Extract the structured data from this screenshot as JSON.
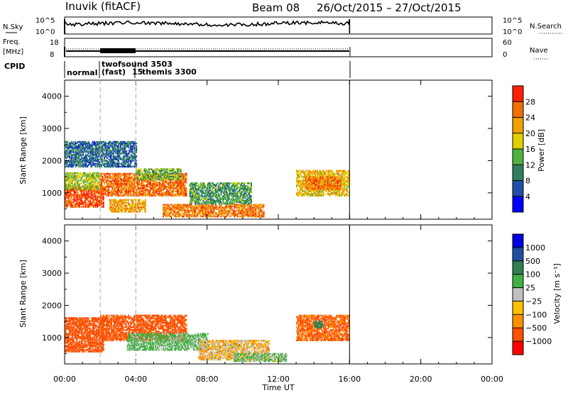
{
  "header": {
    "title": "Inuvik (fitACF)",
    "beam": "Beam 08",
    "date_range": "26/Oct/2015 – 27/Oct/2015"
  },
  "noise_panel": {
    "left_label": "N.Sky",
    "right_label": "N.Search",
    "left_ticks": [
      "10^5",
      "10^0"
    ],
    "right_ticks": [
      "10^5",
      "10^0"
    ]
  },
  "freq_panel": {
    "left_label": "Freq.",
    "left_unit": "[MHz]",
    "right_label": "Nave",
    "left_ticks": [
      "18",
      "8"
    ],
    "right_ticks": [
      "60",
      "0"
    ]
  },
  "cpid": {
    "label": "CPID",
    "programs": [
      {
        "name": "normal",
        "start_hour": 0
      },
      {
        "name": "twofsound 3503",
        "start_hour": 2
      },
      {
        "name": "(fast)",
        "start_hour": 2
      },
      {
        "name": "themis 3300",
        "start_hour": 4
      }
    ],
    "extra_mark": "15"
  },
  "colors": {
    "power_scale": [
      "#0000ff",
      "#1f4fa8",
      "#2f7f5f",
      "#50b040",
      "#e0d000",
      "#f0a000",
      "#f07000",
      "#ff2000"
    ],
    "velocity_scale": [
      "#ff0000",
      "#ff5000",
      "#ff9000",
      "#ffc000",
      "#c0c0c0",
      "#40b040",
      "#307f50",
      "#1f4fa0",
      "#0000e0"
    ]
  },
  "chart_data": [
    {
      "type": "heatmap",
      "title": "Power",
      "xlabel": "",
      "ylabel": "Slant Range [km]",
      "xlim": [
        0,
        24
      ],
      "ylim": [
        180,
        4500
      ],
      "x_ticks": [
        "00:00",
        "04:00",
        "08:00",
        "12:00",
        "16:00",
        "20:00",
        "00:00"
      ],
      "y_ticks": [
        1000,
        2000,
        3000,
        4000
      ],
      "colorbar_label": "Power [dB]",
      "colorbar_ticks": [
        4,
        8,
        12,
        16,
        20,
        24,
        28
      ],
      "colorbar_range": [
        0,
        32
      ],
      "data_end_hour": 16,
      "blobs": [
        {
          "t0": 0.0,
          "t1": 2.2,
          "r0": 550,
          "r1": 1200,
          "level": 28
        },
        {
          "t0": 0.0,
          "t1": 2.0,
          "r0": 1100,
          "r1": 1600,
          "level": 16
        },
        {
          "t0": 2.0,
          "t1": 6.8,
          "r0": 900,
          "r1": 1600,
          "level": 26
        },
        {
          "t0": 4.0,
          "t1": 6.5,
          "r0": 1400,
          "r1": 1750,
          "level": 14
        },
        {
          "t0": 2.5,
          "t1": 4.5,
          "r0": 400,
          "r1": 800,
          "level": 22
        },
        {
          "t0": 5.5,
          "t1": 11.2,
          "r0": 250,
          "r1": 650,
          "level": 25
        },
        {
          "t0": 7.0,
          "t1": 10.5,
          "r0": 650,
          "r1": 1300,
          "level": 12
        },
        {
          "t0": 13.0,
          "t1": 16.0,
          "r0": 900,
          "r1": 1700,
          "level": 20
        },
        {
          "t0": 13.5,
          "t1": 15.5,
          "r0": 1100,
          "r1": 1500,
          "level": 26
        },
        {
          "t0": 0.0,
          "t1": 4.0,
          "r0": 1800,
          "r1": 2600,
          "level": 8
        }
      ]
    },
    {
      "type": "heatmap",
      "title": "Velocity",
      "xlabel": "Time UT",
      "ylabel": "Slant Range [km]",
      "xlim": [
        0,
        24
      ],
      "ylim": [
        180,
        4500
      ],
      "x_ticks": [
        "00:00",
        "04:00",
        "08:00",
        "12:00",
        "16:00",
        "20:00",
        "00:00"
      ],
      "y_ticks": [
        1000,
        2000,
        3000,
        4000
      ],
      "colorbar_label": "Velocity [m s⁻¹]",
      "colorbar_ticks": [
        "1000",
        "500",
        "100",
        "25",
        "−25",
        "−100",
        "−500",
        "−1000"
      ],
      "data_end_hour": 16,
      "blobs": [
        {
          "t0": 0.0,
          "t1": 2.2,
          "r0": 550,
          "r1": 1600,
          "level": -300
        },
        {
          "t0": 2.0,
          "t1": 6.8,
          "r0": 900,
          "r1": 1700,
          "level": -200
        },
        {
          "t0": 3.5,
          "t1": 8.0,
          "r0": 600,
          "r1": 1100,
          "level": 150
        },
        {
          "t0": 7.5,
          "t1": 11.5,
          "r0": 300,
          "r1": 900,
          "level": 0
        },
        {
          "t0": 9.5,
          "t1": 12.5,
          "r0": 250,
          "r1": 500,
          "level": 120
        },
        {
          "t0": 13.0,
          "t1": 16.0,
          "r0": 900,
          "r1": 1700,
          "level": -150
        },
        {
          "t0": 14.0,
          "t1": 14.5,
          "r0": 1300,
          "r1": 1500,
          "level": 800
        }
      ]
    }
  ]
}
